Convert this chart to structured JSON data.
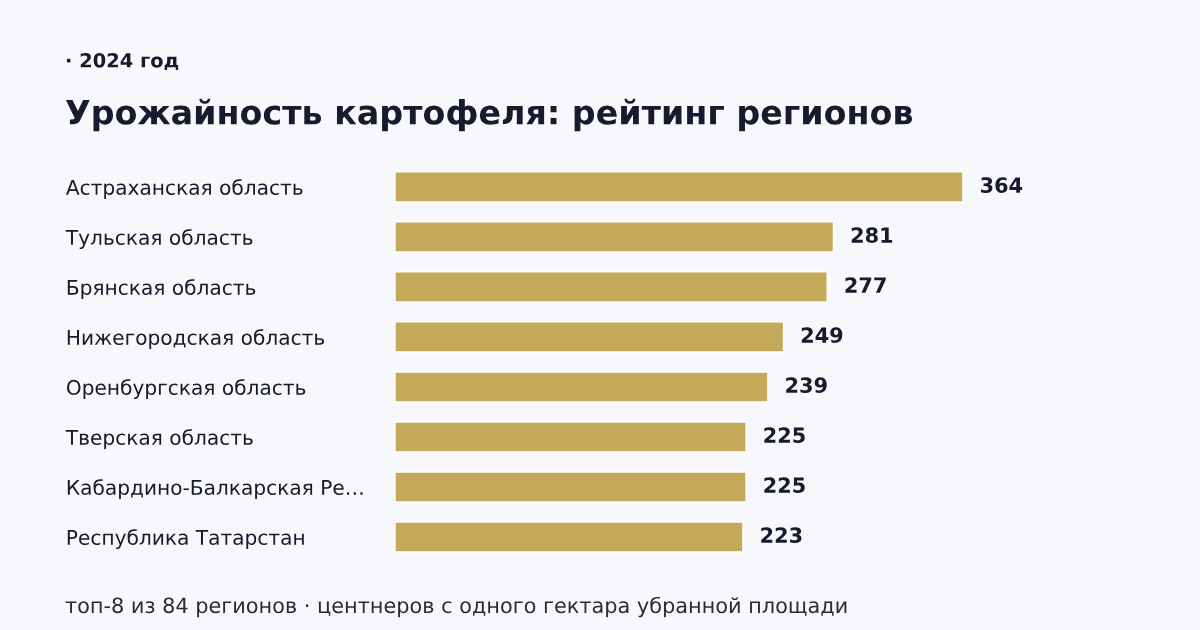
{
  "chart_data": {
    "type": "bar",
    "orientation": "horizontal",
    "title": "Урожайность картофеля: рейтинг регионов",
    "subtitle": "· 2024 год",
    "categories": [
      "Астраханская область",
      "Тульская область",
      "Брянская область",
      "Нижегородская область",
      "Оренбургская область",
      "Тверская область",
      "Кабардино-Балкарская Ре…",
      "Республика Татарстан"
    ],
    "values": [
      364,
      281,
      277,
      249,
      239,
      225,
      225,
      223
    ],
    "color": "#c5a95a",
    "data_labels": true,
    "grid": false,
    "tick_labels": "y",
    "annotations": [
      "топ-8 из 84 регионов · центнеров с одного гектара убранной площади"
    ]
  }
}
